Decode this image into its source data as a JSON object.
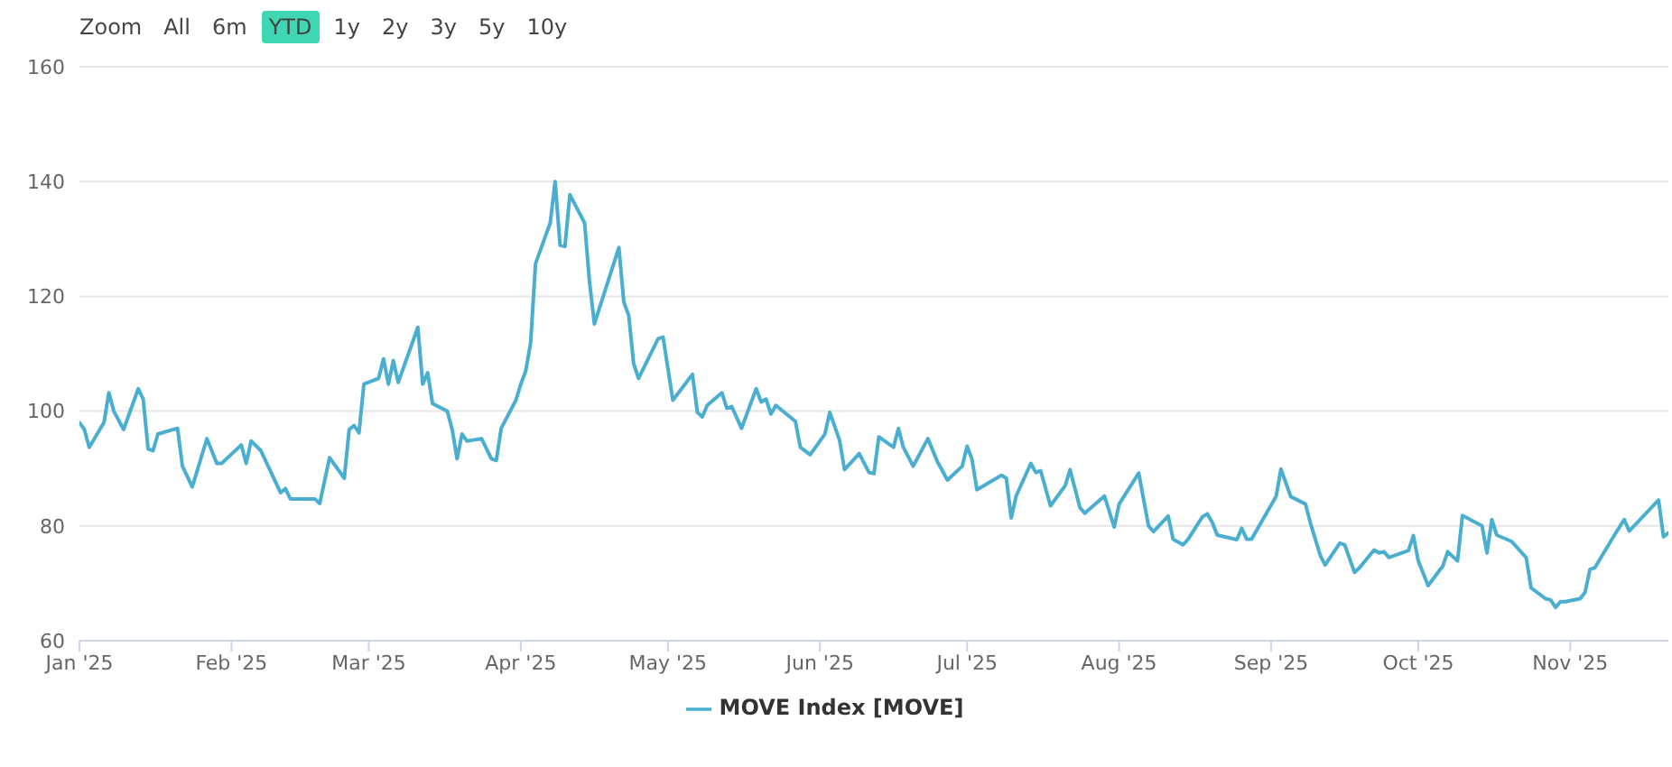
{
  "chart_data": {
    "type": "line",
    "annotations": [
      "Zoom",
      "All",
      "6m",
      "YTD",
      "1y",
      "2y",
      "3y",
      "5y",
      "10y"
    ],
    "x": [
      "2025-01-01",
      "2025-01-02",
      "2025-01-03",
      "2025-01-06",
      "2025-01-07",
      "2025-01-08",
      "2025-01-10",
      "2025-01-13",
      "2025-01-14",
      "2025-01-15",
      "2025-01-16",
      "2025-01-17",
      "2025-01-21",
      "2025-01-22",
      "2025-01-24",
      "2025-01-27",
      "2025-01-29",
      "2025-01-30",
      "2025-02-03",
      "2025-02-04",
      "2025-02-05",
      "2025-02-07",
      "2025-02-11",
      "2025-02-12",
      "2025-02-13",
      "2025-02-18",
      "2025-02-19",
      "2025-02-21",
      "2025-02-24",
      "2025-02-25",
      "2025-02-26",
      "2025-02-27",
      "2025-02-28",
      "2025-03-03",
      "2025-03-04",
      "2025-03-05",
      "2025-03-06",
      "2025-03-07",
      "2025-03-11",
      "2025-03-12",
      "2025-03-13",
      "2025-03-14",
      "2025-03-17",
      "2025-03-18",
      "2025-03-19",
      "2025-03-20",
      "2025-03-21",
      "2025-03-24",
      "2025-03-26",
      "2025-03-27",
      "2025-03-28",
      "2025-03-31",
      "2025-04-01",
      "2025-04-02",
      "2025-04-03",
      "2025-04-04",
      "2025-04-07",
      "2025-04-08",
      "2025-04-09",
      "2025-04-10",
      "2025-04-11",
      "2025-04-14",
      "2025-04-15",
      "2025-04-16",
      "2025-04-21",
      "2025-04-22",
      "2025-04-23",
      "2025-04-24",
      "2025-04-25",
      "2025-04-29",
      "2025-04-30",
      "2025-05-02",
      "2025-05-06",
      "2025-05-07",
      "2025-05-08",
      "2025-05-09",
      "2025-05-12",
      "2025-05-13",
      "2025-05-14",
      "2025-05-16",
      "2025-05-19",
      "2025-05-20",
      "2025-05-21",
      "2025-05-22",
      "2025-05-23",
      "2025-05-27",
      "2025-05-28",
      "2025-05-30",
      "2025-06-02",
      "2025-06-03",
      "2025-06-05",
      "2025-06-06",
      "2025-06-09",
      "2025-06-11",
      "2025-06-12",
      "2025-06-13",
      "2025-06-16",
      "2025-06-17",
      "2025-06-18",
      "2025-06-20",
      "2025-06-23",
      "2025-06-25",
      "2025-06-27",
      "2025-06-30",
      "2025-07-01",
      "2025-07-02",
      "2025-07-03",
      "2025-07-08",
      "2025-07-09",
      "2025-07-10",
      "2025-07-11",
      "2025-07-14",
      "2025-07-15",
      "2025-07-16",
      "2025-07-18",
      "2025-07-21",
      "2025-07-22",
      "2025-07-24",
      "2025-07-25",
      "2025-07-29",
      "2025-07-31",
      "2025-08-01",
      "2025-08-05",
      "2025-08-07",
      "2025-08-08",
      "2025-08-11",
      "2025-08-12",
      "2025-08-14",
      "2025-08-15",
      "2025-08-18",
      "2025-08-19",
      "2025-08-20",
      "2025-08-21",
      "2025-08-25",
      "2025-08-26",
      "2025-08-27",
      "2025-08-28",
      "2025-09-02",
      "2025-09-03",
      "2025-09-05",
      "2025-09-08",
      "2025-09-09",
      "2025-09-11",
      "2025-09-12",
      "2025-09-15",
      "2025-09-16",
      "2025-09-18",
      "2025-09-19",
      "2025-09-22",
      "2025-09-23",
      "2025-09-24",
      "2025-09-25",
      "2025-09-29",
      "2025-09-30",
      "2025-10-01",
      "2025-10-03",
      "2025-10-06",
      "2025-10-07",
      "2025-10-09",
      "2025-10-10",
      "2025-10-14",
      "2025-10-15",
      "2025-10-16",
      "2025-10-17",
      "2025-10-20",
      "2025-10-23",
      "2025-10-24",
      "2025-10-27",
      "2025-10-28",
      "2025-10-29",
      "2025-10-30",
      "2025-10-31",
      "2025-11-03",
      "2025-11-04",
      "2025-11-05",
      "2025-11-06",
      "2025-11-10",
      "2025-11-12",
      "2025-11-13",
      "2025-11-19",
      "2025-11-20",
      "2025-11-21"
    ],
    "series": [
      {
        "name": "MOVE Index [MOVE]",
        "color": "#4aaed0",
        "values": [
          98,
          96.8,
          93.7,
          98,
          103.2,
          100,
          96.8,
          103.9,
          102.1,
          93.4,
          93.1,
          96,
          97,
          90.4,
          86.8,
          95.2,
          90.9,
          90.9,
          94.1,
          90.9,
          94.8,
          93.1,
          85.8,
          86.5,
          84.7,
          84.7,
          83.9,
          91.9,
          88.3,
          96.8,
          97.5,
          96.2,
          104.7,
          105.7,
          109.1,
          104.7,
          108.8,
          105,
          114.6,
          104.7,
          106.7,
          101.3,
          100,
          96.8,
          91.7,
          96,
          94.8,
          95.2,
          91.7,
          91.4,
          97,
          101.9,
          104.7,
          107,
          111.9,
          125.7,
          132.8,
          140,
          128.9,
          128.7,
          137.7,
          132.8,
          122.6,
          115.2,
          128.5,
          119,
          116.7,
          108.3,
          105.7,
          112.6,
          112.9,
          101.9,
          106.4,
          99.8,
          99,
          101,
          103.2,
          100.5,
          100.8,
          97,
          103.9,
          101.6,
          102.1,
          99.5,
          101,
          98.2,
          93.7,
          92.4,
          96,
          99.8,
          94.9,
          89.8,
          92.6,
          89.3,
          89.1,
          95.5,
          93.7,
          97,
          93.7,
          90.4,
          95.2,
          91.1,
          88,
          90.4,
          93.9,
          91.6,
          86.3,
          88.8,
          88.3,
          81.4,
          85.2,
          90.9,
          89.3,
          89.6,
          83.5,
          87,
          89.8,
          83.2,
          82.2,
          85.2,
          79.8,
          83.8,
          89.2,
          80,
          79,
          81.7,
          77.7,
          76.7,
          77.6,
          81.6,
          82.1,
          80.6,
          78.4,
          77.6,
          79.6,
          77.7,
          77.7,
          85.1,
          89.9,
          85.1,
          83.8,
          80.5,
          74.9,
          73.2,
          77,
          76.7,
          71.9,
          72.7,
          75.8,
          75.3,
          75.5,
          74.5,
          75.7,
          78.3,
          73.9,
          69.6,
          73,
          75.5,
          73.9,
          81.8,
          80,
          75.3,
          81.1,
          78.4,
          77.3,
          74.5,
          69.2,
          67.3,
          67.1,
          65.8,
          66.8,
          66.8,
          67.3,
          68.4,
          72.4,
          72.7,
          78.4,
          81.1,
          79.1,
          84.5,
          78.1,
          78.8
        ]
      }
    ],
    "xlim": [
      "2025-01-01",
      "2025-11-21"
    ],
    "xticks": [
      {
        "value": "2025-01-01",
        "label": "Jan '25"
      },
      {
        "value": "2025-02-01",
        "label": "Feb '25"
      },
      {
        "value": "2025-03-01",
        "label": "Mar '25"
      },
      {
        "value": "2025-04-01",
        "label": "Apr '25"
      },
      {
        "value": "2025-05-01",
        "label": "May '25"
      },
      {
        "value": "2025-06-01",
        "label": "Jun '25"
      },
      {
        "value": "2025-07-01",
        "label": "Jul '25"
      },
      {
        "value": "2025-08-01",
        "label": "Aug '25"
      },
      {
        "value": "2025-09-01",
        "label": "Sep '25"
      },
      {
        "value": "2025-10-01",
        "label": "Oct '25"
      },
      {
        "value": "2025-11-01",
        "label": "Nov '25"
      }
    ],
    "ylim": [
      60,
      160
    ],
    "yticks": [
      60,
      80,
      100,
      120,
      140,
      160
    ],
    "grid": "y",
    "legend": "bottom",
    "marker": "none",
    "line_style": "solid"
  }
}
